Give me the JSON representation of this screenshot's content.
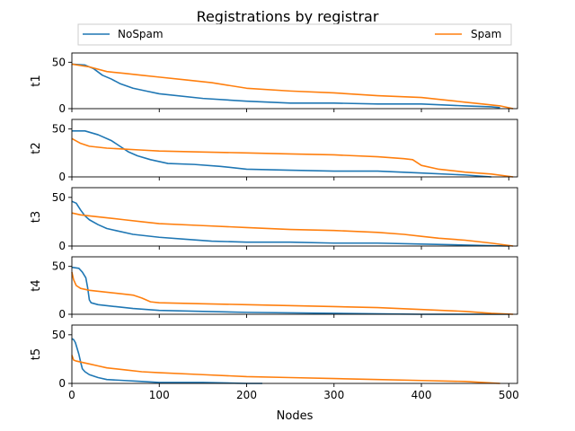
{
  "chart_data": {
    "type": "line",
    "title": "Registrations by registrar",
    "xlabel": "Nodes",
    "xlim": [
      0,
      510
    ],
    "xticks": [
      0,
      100,
      200,
      300,
      400,
      500
    ],
    "legend": {
      "placement": "top",
      "entries": [
        "NoSpam",
        "Spam"
      ]
    },
    "colors": {
      "NoSpam": "#1f77b4",
      "Spam": "#ff7f0e"
    },
    "subplots": [
      {
        "ylabel": "t1",
        "ylim": [
          0,
          60
        ],
        "yticks": [
          0,
          50
        ],
        "series": [
          {
            "name": "NoSpam",
            "x": [
              0,
              15,
              25,
              35,
              45,
              55,
              70,
              85,
              100,
              150,
              200,
              250,
              300,
              350,
              400,
              450,
              480,
              490
            ],
            "y": [
              48,
              47,
              43,
              36,
              32,
              27,
              22,
              19,
              16,
              11,
              8,
              6,
              6,
              5,
              5,
              3,
              2,
              1
            ]
          },
          {
            "name": "Spam",
            "x": [
              0,
              20,
              40,
              60,
              80,
              100,
              130,
              160,
              200,
              250,
              300,
              350,
              400,
              430,
              450,
              470,
              490,
              505
            ],
            "y": [
              48,
              45,
              40,
              38,
              36,
              34,
              31,
              28,
              22,
              19,
              17,
              14,
              12,
              9,
              7,
              5,
              3,
              0
            ]
          }
        ]
      },
      {
        "ylabel": "t2",
        "ylim": [
          0,
          60
        ],
        "yticks": [
          0,
          50
        ],
        "series": [
          {
            "name": "NoSpam",
            "x": [
              0,
              15,
              30,
              45,
              55,
              65,
              75,
              90,
              110,
              140,
              170,
              200,
              250,
              300,
              350,
              400,
              450,
              480
            ],
            "y": [
              48,
              48,
              44,
              38,
              32,
              26,
              22,
              18,
              14,
              13,
              11,
              8,
              7,
              6,
              6,
              4,
              2,
              0
            ]
          },
          {
            "name": "Spam",
            "x": [
              0,
              10,
              20,
              40,
              60,
              80,
              100,
              150,
              200,
              250,
              300,
              350,
              380,
              390,
              400,
              420,
              450,
              480,
              505
            ],
            "y": [
              40,
              35,
              32,
              30,
              29,
              28,
              27,
              26,
              25,
              24,
              23,
              21,
              19,
              18,
              12,
              8,
              5,
              3,
              0
            ]
          }
        ]
      },
      {
        "ylabel": "t3",
        "ylim": [
          0,
          60
        ],
        "yticks": [
          0,
          50
        ],
        "series": [
          {
            "name": "NoSpam",
            "x": [
              0,
              5,
              10,
              15,
              20,
              30,
              40,
              50,
              70,
              100,
              130,
              160,
              200,
              250,
              300,
              350,
              400,
              450,
              500
            ],
            "y": [
              46,
              44,
              37,
              31,
              27,
              22,
              18,
              16,
              12,
              9,
              7,
              5,
              4,
              4,
              3,
              3,
              2,
              1,
              0
            ]
          },
          {
            "name": "Spam",
            "x": [
              0,
              10,
              20,
              40,
              60,
              80,
              100,
              150,
              200,
              250,
              300,
              350,
              380,
              400,
              420,
              450,
              480,
              505
            ],
            "y": [
              34,
              32,
              31,
              29,
              27,
              25,
              23,
              21,
              19,
              17,
              16,
              14,
              12,
              10,
              8,
              6,
              3,
              0
            ]
          }
        ]
      },
      {
        "ylabel": "t4",
        "ylim": [
          0,
          60
        ],
        "yticks": [
          0,
          50
        ],
        "series": [
          {
            "name": "NoSpam",
            "x": [
              0,
              8,
              12,
              16,
              18,
              20,
              22,
              30,
              50,
              70,
              100,
              150,
              200,
              300,
              400,
              500
            ],
            "y": [
              49,
              48,
              44,
              38,
              28,
              15,
              12,
              10,
              8,
              6,
              4,
              3,
              2,
              1,
              0,
              0
            ]
          },
          {
            "name": "Spam",
            "x": [
              0,
              2,
              5,
              10,
              20,
              40,
              60,
              70,
              80,
              90,
              100,
              150,
              200,
              300,
              350,
              400,
              450,
              480,
              505
            ],
            "y": [
              44,
              36,
              30,
              27,
              25,
              23,
              21,
              20,
              17,
              13,
              12,
              11,
              10,
              8,
              7,
              5,
              3,
              1,
              0
            ]
          }
        ]
      },
      {
        "ylabel": "t5",
        "ylim": [
          0,
          60
        ],
        "yticks": [
          0,
          50
        ],
        "series": [
          {
            "name": "NoSpam",
            "x": [
              0,
              2,
              4,
              6,
              8,
              10,
              12,
              15,
              20,
              30,
              40,
              60,
              80,
              100,
              150,
              200,
              218
            ],
            "y": [
              46,
              45,
              42,
              36,
              30,
              22,
              15,
              12,
              9,
              6,
              4,
              3,
              2,
              1,
              1,
              0,
              0
            ]
          },
          {
            "name": "Spam",
            "x": [
              0,
              2,
              5,
              10,
              20,
              30,
              40,
              60,
              80,
              100,
              150,
              200,
              250,
              300,
              350,
              400,
              450,
              470,
              490
            ],
            "y": [
              29,
              24,
              23,
              22,
              20,
              18,
              16,
              14,
              12,
              11,
              9,
              7,
              6,
              5,
              4,
              3,
              2,
              1,
              0
            ]
          }
        ]
      }
    ]
  }
}
